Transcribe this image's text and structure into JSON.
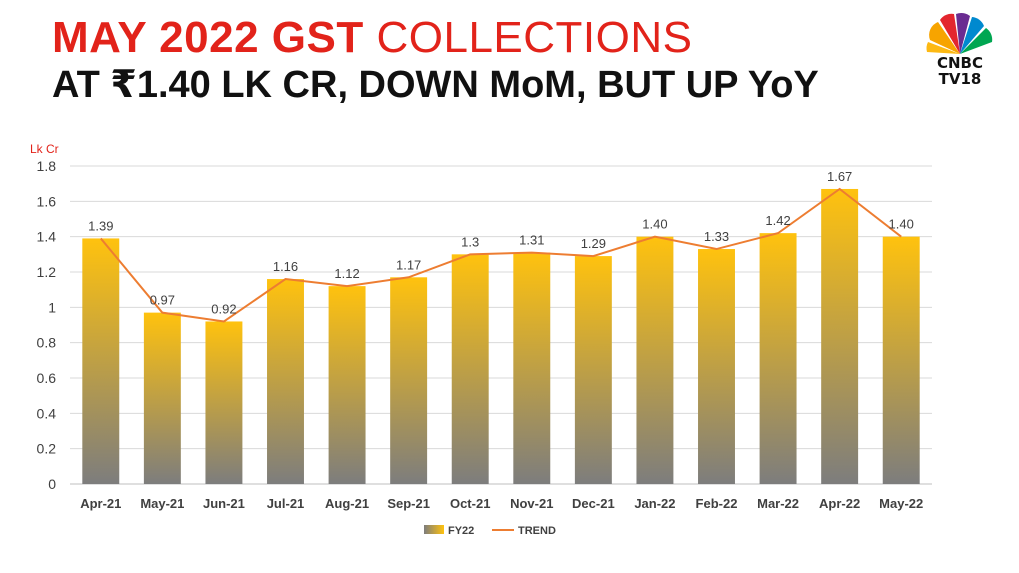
{
  "headline": {
    "title_bold": "MAY 2022 GST",
    "title_light": "COLLECTIONS",
    "subtitle": "AT ₹1.40 LK CR, DOWN MoM, BUT UP YoY"
  },
  "logo": {
    "line1": "CNBC",
    "line2": "TV18"
  },
  "colors": {
    "title_red": "#e2231a",
    "bar_top": "#ffc20e",
    "bar_bottom": "#7d7d7d",
    "trend_line": "#ed7d31"
  },
  "chart_data": {
    "type": "bar",
    "ylabel": "Lk Cr",
    "ylim": [
      0,
      1.8
    ],
    "yticks": [
      "0",
      "0.2",
      "0.4",
      "0.6",
      "0.8",
      "1",
      "1.2",
      "1.4",
      "1.6",
      "1.8"
    ],
    "grid": true,
    "legend_position": "bottom",
    "categories": [
      "Apr-21",
      "May-21",
      "Jun-21",
      "Jul-21",
      "Aug-21",
      "Sep-21",
      "Oct-21",
      "Nov-21",
      "Dec-21",
      "Jan-22",
      "Feb-22",
      "Mar-22",
      "Apr-22",
      "May-22"
    ],
    "series": [
      {
        "name": "FY22",
        "kind": "bar",
        "values": [
          1.39,
          0.97,
          0.92,
          1.16,
          1.12,
          1.17,
          1.3,
          1.31,
          1.29,
          1.4,
          1.33,
          1.42,
          1.67,
          1.4
        ],
        "labels": [
          "1.39",
          "0.97",
          "0.92",
          "1.16",
          "1.12",
          "1.17",
          "1.3",
          "1.31",
          "1.29",
          "1.40",
          "1.33",
          "1.42",
          "1.67",
          "1.40"
        ]
      },
      {
        "name": "TREND",
        "kind": "line",
        "values": [
          1.39,
          0.97,
          0.92,
          1.16,
          1.12,
          1.17,
          1.3,
          1.31,
          1.29,
          1.4,
          1.33,
          1.42,
          1.67,
          1.4
        ]
      }
    ]
  }
}
